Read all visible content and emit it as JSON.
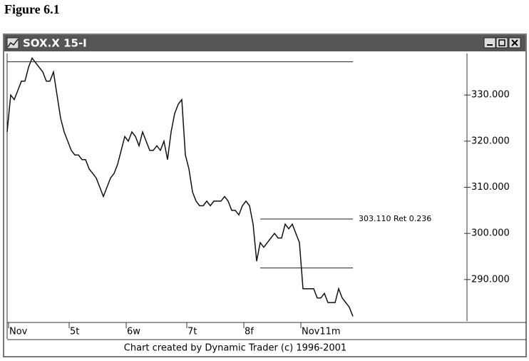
{
  "figure_label": "Figure 6.1",
  "window_title": "SOX.X 15-I",
  "footer": "Chart created by Dynamic Trader (c) 1996-2001",
  "chart_data": {
    "type": "line",
    "series": [
      {
        "name": "SOX.X",
        "color": "#111111",
        "values": [
          322,
          330,
          329,
          331,
          333,
          333,
          336,
          338,
          337,
          336,
          335,
          333,
          333,
          335,
          330,
          325,
          322,
          320,
          318,
          317,
          317,
          316,
          316,
          314,
          313,
          312,
          310,
          308,
          310,
          312,
          313,
          315,
          318,
          321,
          320,
          322,
          321,
          319,
          322,
          320,
          318,
          318,
          319,
          318,
          320,
          316,
          322,
          326,
          328,
          329,
          317,
          314,
          309,
          307,
          306,
          306,
          307,
          306,
          307,
          307,
          307,
          308,
          307,
          305,
          305,
          304,
          306,
          307,
          306,
          302,
          294,
          298,
          297,
          298,
          299,
          300,
          299,
          299,
          302,
          301,
          302,
          300,
          298,
          288,
          288,
          288,
          288,
          286,
          286,
          287,
          285,
          285,
          285,
          288,
          286,
          285,
          284,
          282
        ]
      }
    ],
    "xlim": [
      0,
      129
    ],
    "xticks": [
      {
        "value": 0,
        "label": "Nov"
      },
      {
        "value": 17,
        "label": "5t"
      },
      {
        "value": 33,
        "label": "6w"
      },
      {
        "value": 50,
        "label": "7t"
      },
      {
        "value": 66,
        "label": "8f"
      },
      {
        "value": 82,
        "label": "Nov11m"
      }
    ],
    "ylim": [
      281,
      339
    ],
    "yticks": [
      {
        "value": 290,
        "label": "290.000"
      },
      {
        "value": 300,
        "label": "300.000"
      },
      {
        "value": 310,
        "label": "310.000"
      },
      {
        "value": 320,
        "label": "320.000"
      },
      {
        "value": 330,
        "label": "330.000"
      }
    ],
    "levels": [
      {
        "value": 337.2,
        "from": 0,
        "to": 97
      },
      {
        "value": 303.11,
        "from": 71,
        "to": 97,
        "label": "303.110 Ret 0.236"
      },
      {
        "value": 292.5,
        "from": 71,
        "to": 97
      }
    ]
  }
}
